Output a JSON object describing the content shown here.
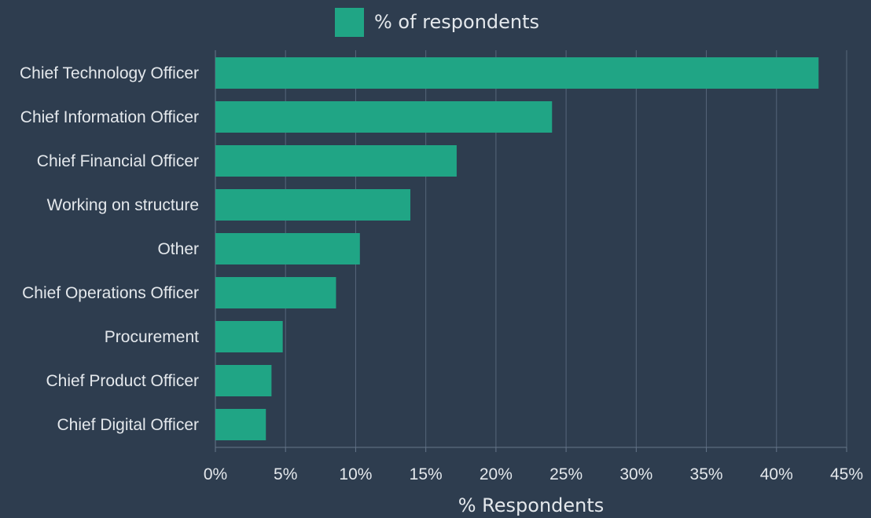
{
  "chart_data": {
    "type": "bar",
    "orientation": "horizontal",
    "categories": [
      "Chief Technology Officer",
      "Chief Information Officer",
      "Chief Financial Officer",
      "Working on structure",
      "Other",
      "Chief Operations Officer",
      "Procurement",
      "Chief Product Officer",
      "Chief Digital Officer"
    ],
    "series": [
      {
        "name": "% of respondents",
        "values": [
          43.0,
          24.0,
          17.2,
          13.9,
          10.3,
          8.6,
          4.8,
          4.0,
          3.6
        ]
      }
    ],
    "xlabel": "% Respondents",
    "xlim": [
      0,
      45
    ],
    "x_ticks": [
      "0%",
      "5%",
      "10%",
      "15%",
      "20%",
      "25%",
      "30%",
      "35%",
      "40%",
      "45%"
    ],
    "grid": true,
    "legend_position": "top-center",
    "colors": {
      "background": "#2e3d4f",
      "bar": "#20a585",
      "grid": "#56667a",
      "text": "#e4e8ec"
    }
  }
}
